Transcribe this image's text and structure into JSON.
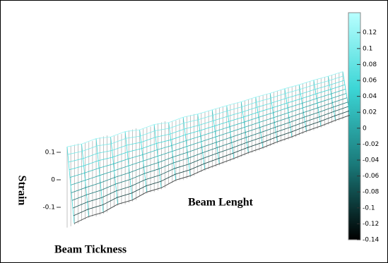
{
  "chart_data": {
    "type": "surface",
    "xlabel": "Beam Lenght",
    "ylabel": "Beam Tickness",
    "zlabel": "Strain",
    "values": [
      0.12,
      0.115,
      0.12,
      0.11,
      0.115,
      0.105,
      0.11,
      0.1,
      0.105,
      0.1,
      0.1,
      0.1,
      0.098,
      0.1,
      0.098,
      0.1,
      0.098,
      0.1,
      0.098,
      0.1
    ],
    "zticks": [
      -0.1,
      0,
      0.1
    ],
    "clim": [
      -0.14,
      0.145
    ],
    "cticks": [
      0.12,
      0.1,
      0.08,
      0.06,
      0.04,
      0.02,
      0,
      -0.02,
      -0.04,
      -0.06,
      -0.08,
      -0.1,
      -0.12,
      -0.14
    ],
    "colormap": [
      "#000000",
      "#1a7a7a",
      "#3cd6d6",
      "#b8ffff"
    ]
  }
}
